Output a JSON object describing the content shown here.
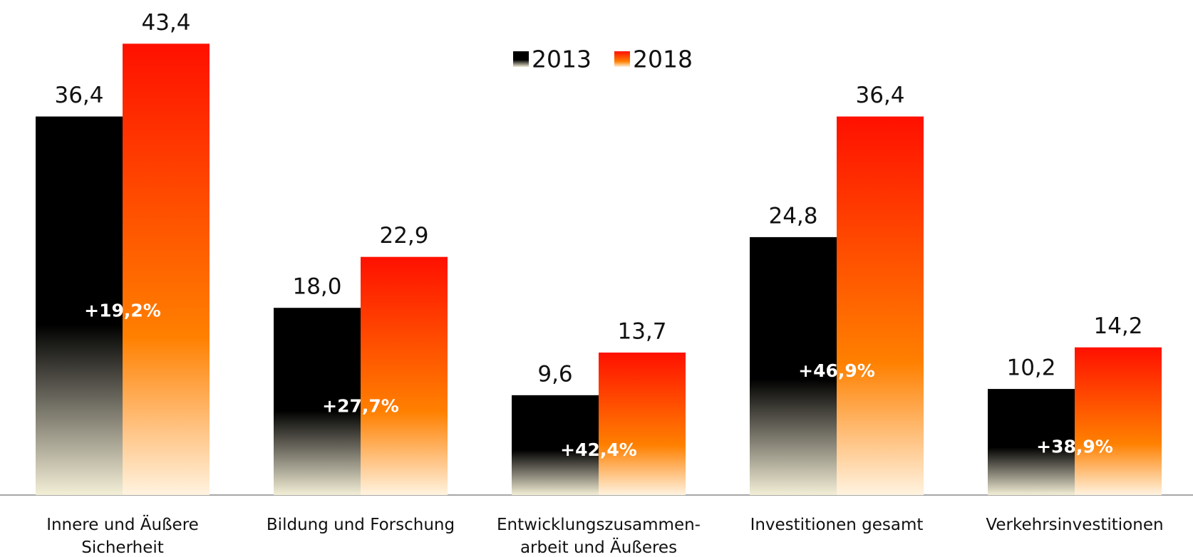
{
  "chart_data": {
    "type": "bar",
    "categories": [
      [
        "Innere und Äußere",
        "Sicherheit"
      ],
      [
        "Bildung und Forschung"
      ],
      [
        "Entwicklungszusammen-",
        "arbeit und Äußeres"
      ],
      [
        "Investitionen gesamt"
      ],
      [
        "Verkehrsinvestitionen"
      ]
    ],
    "series": [
      {
        "name": "2013",
        "color": "#000000",
        "values": [
          36.4,
          18.0,
          9.6,
          24.8,
          10.2
        ],
        "value_labels": [
          "36,4",
          "18,0",
          "9,6",
          "24,8",
          "10,2"
        ]
      },
      {
        "name": "2018",
        "color": "#ff1a00",
        "values": [
          43.4,
          22.9,
          13.7,
          36.4,
          14.2
        ],
        "value_labels": [
          "43,4",
          "22,9",
          "13,7",
          "36,4",
          "14,2"
        ]
      }
    ],
    "annotations": [
      "+19,2%",
      "+27,7%",
      "+42,4%",
      "+46,9%",
      "+38,9%"
    ],
    "ylim": [
      0,
      45
    ]
  }
}
